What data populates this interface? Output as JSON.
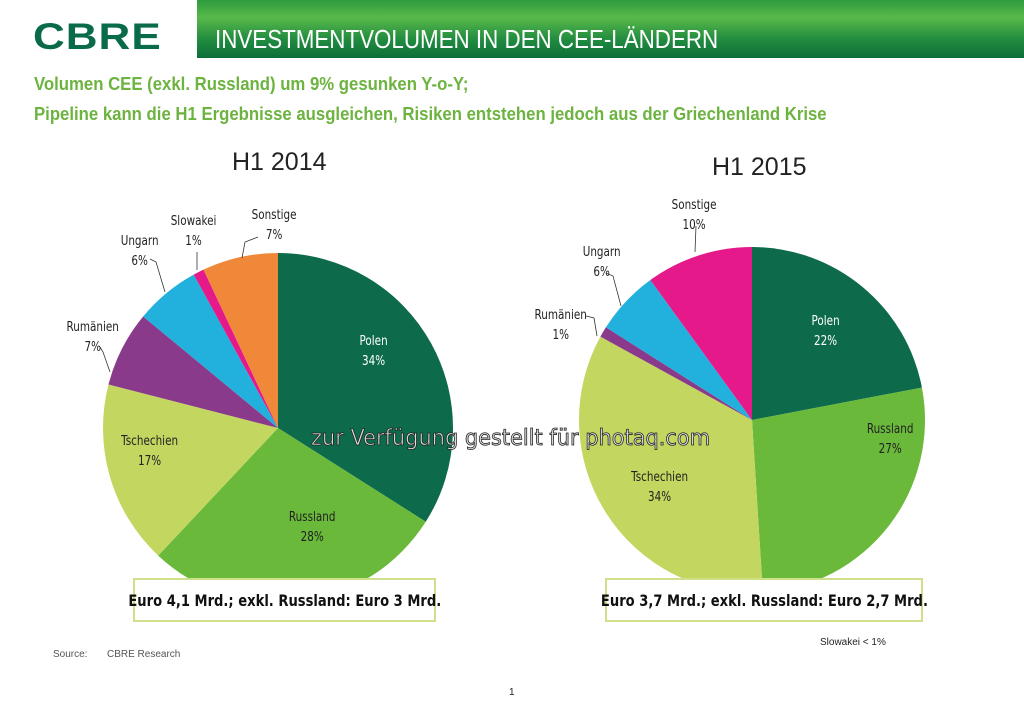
{
  "header": {
    "logo": "CBRE",
    "title": "INVESTMENTVOLUMEN IN DEN CEE-LÄNDERN"
  },
  "subtitle": {
    "line1": "Volumen CEE (exkl. Russland) um 9% gesunken Y-o-Y;",
    "line2": "Pipeline kann die H1 Ergebnisse ausgleichen, Risiken entstehen jedoch aus der Griechenland Krise"
  },
  "chart_data": [
    {
      "type": "pie",
      "title": "H1 2014",
      "slices": [
        {
          "label": "Polen",
          "value": 34,
          "display": "34%",
          "color": "#0d6b4c"
        },
        {
          "label": "Russland",
          "value": 28,
          "display": "28%",
          "color": "#6ab93a"
        },
        {
          "label": "Tschechien",
          "value": 17,
          "display": "17%",
          "color": "#c3d760"
        },
        {
          "label": "Rumänien",
          "value": 7,
          "display": "7%",
          "color": "#8a3a8a"
        },
        {
          "label": "Ungarn",
          "value": 6,
          "display": "6%",
          "color": "#22b0dc"
        },
        {
          "label": "Slowakei",
          "value": 1,
          "display": "1%",
          "color": "#e6198a"
        },
        {
          "label": "Sonstige",
          "value": 7,
          "display": "7%",
          "color": "#f0883a"
        }
      ],
      "summary": "Euro 4,1 Mrd.; exkl. Russland: Euro 3 Mrd."
    },
    {
      "type": "pie",
      "title": "H1 2015",
      "slices": [
        {
          "label": "Polen",
          "value": 22,
          "display": "22%",
          "color": "#0d6b4c"
        },
        {
          "label": "Russland",
          "value": 27,
          "display": "27%",
          "color": "#6ab93a"
        },
        {
          "label": "Tschechien",
          "value": 34,
          "display": "34%",
          "color": "#c3d760"
        },
        {
          "label": "Rumänien",
          "value": 1,
          "display": "1%",
          "color": "#8a3a8a"
        },
        {
          "label": "Ungarn",
          "value": 6,
          "display": "6%",
          "color": "#22b0dc"
        },
        {
          "label": "Sonstige",
          "value": 10,
          "display": "10%",
          "color": "#e6198a"
        }
      ],
      "summary": "Euro 3,7 Mrd.; exkl. Russland: Euro 2,7 Mrd."
    }
  ],
  "watermark": "zur Verfügung gestellt für photaq.com",
  "footer": {
    "source_label": "Source:",
    "source": "CBRE Research",
    "note": "Slowakei < 1%",
    "page": "1"
  }
}
